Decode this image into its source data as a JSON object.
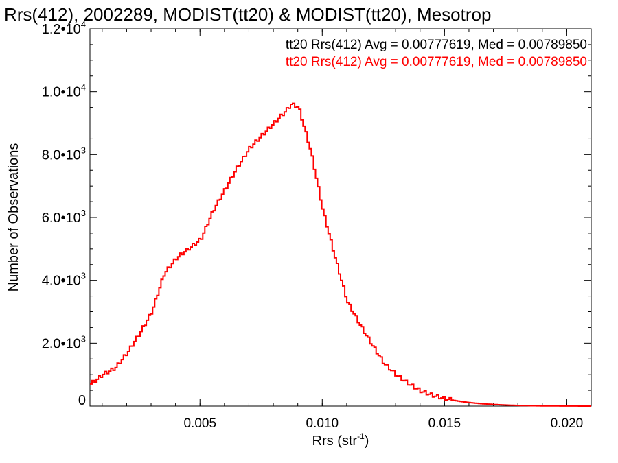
{
  "chart_data": {
    "type": "line",
    "title": "Rrs(412), 2002289, MODIST(tt20) & MODIST(tt20), Mesotrop",
    "xlabel": "Rrs (str",
    "xlabel_sup": "-1",
    "xlabel_close": ")",
    "ylabel": "Number of Observations",
    "xlim": [
      0.0005,
      0.021
    ],
    "ylim": [
      0,
      12000
    ],
    "x_ticks": [
      {
        "value": 0.005,
        "label": "0.005"
      },
      {
        "value": 0.01,
        "label": "0.010"
      },
      {
        "value": 0.015,
        "label": "0.015"
      },
      {
        "value": 0.02,
        "label": "0.020"
      }
    ],
    "y_ticks": [
      {
        "value": 0,
        "mant": "0",
        "exp": ""
      },
      {
        "value": 2000,
        "mant": "2.0•10",
        "exp": "3"
      },
      {
        "value": 4000,
        "mant": "4.0•10",
        "exp": "3"
      },
      {
        "value": 6000,
        "mant": "6.0•10",
        "exp": "3"
      },
      {
        "value": 8000,
        "mant": "8.0•10",
        "exp": "3"
      },
      {
        "value": 10000,
        "mant": "1.0•10",
        "exp": "4"
      },
      {
        "value": 12000,
        "mant": "1.2•10",
        "exp": "4"
      }
    ],
    "grid": false,
    "legend_position": "top-right",
    "legend": [
      {
        "text": "tt20 Rrs(412) Avg = 0.00777619, Med = 0.00789850",
        "color": "#000000"
      },
      {
        "text": "tt20 Rrs(412) Avg = 0.00777619, Med = 0.00789850",
        "color": "#ff0000"
      }
    ],
    "series": [
      {
        "color": "#ff0000",
        "x": [
          0.0005,
          0.001,
          0.0015,
          0.002,
          0.0025,
          0.003,
          0.0035,
          0.004,
          0.0045,
          0.005,
          0.0055,
          0.006,
          0.0065,
          0.007,
          0.0075,
          0.008,
          0.0085,
          0.0087,
          0.009,
          0.0095,
          0.01,
          0.0105,
          0.011,
          0.0115,
          0.012,
          0.0125,
          0.013,
          0.0135,
          0.014,
          0.0145,
          0.015,
          0.0155,
          0.016,
          0.0165,
          0.017,
          0.0175,
          0.018,
          0.0185,
          0.019,
          0.0195,
          0.02,
          0.0205,
          0.021
        ],
        "y": [
          700,
          1000,
          1200,
          1700,
          2300,
          3000,
          4200,
          4700,
          5000,
          5300,
          6200,
          6900,
          7600,
          8200,
          8600,
          9000,
          9400,
          9600,
          9500,
          8100,
          6200,
          4700,
          3300,
          2600,
          1950,
          1350,
          980,
          700,
          470,
          330,
          230,
          160,
          110,
          75,
          50,
          32,
          20,
          12,
          7,
          4,
          2,
          1,
          0
        ]
      }
    ]
  }
}
